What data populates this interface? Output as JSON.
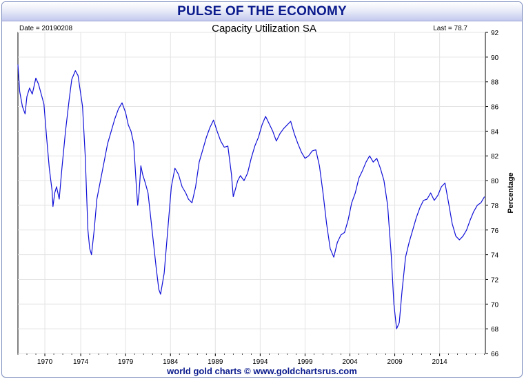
{
  "banner": {
    "title": "PULSE OF THE ECONOMY"
  },
  "footer": {
    "credit": "world gold charts © www.goldchartsrus.com"
  },
  "chart_data": {
    "type": "line",
    "title": "Capacity Utilization SA",
    "date_label": "Date = 20190208",
    "last_label": "Last = 78.7",
    "ylabel": "Percentage",
    "xlabel": "",
    "xlim": [
      1967.0,
      2019.1
    ],
    "ylim": [
      66,
      92
    ],
    "x_ticks": [
      1970,
      1974,
      1979,
      1984,
      1989,
      1994,
      1999,
      2004,
      2009,
      2014
    ],
    "y_ticks": [
      66,
      68,
      70,
      72,
      74,
      76,
      78,
      80,
      82,
      84,
      86,
      88,
      90,
      92
    ],
    "y_axis_side": "right",
    "grid": true,
    "legend": "none",
    "line_color": "#1010d8",
    "series": [
      {
        "x": [
          1967.0,
          1967.2,
          1967.5,
          1967.8,
          1968.0,
          1968.3,
          1968.6,
          1969.0,
          1969.3,
          1969.6,
          1969.9,
          1970.2,
          1970.5,
          1970.8,
          1970.9,
          1971.1,
          1971.3,
          1971.6,
          1971.9,
          1972.3,
          1972.7,
          1973.0,
          1973.4,
          1973.7,
          1973.9,
          1974.2,
          1974.5,
          1974.8,
          1975.0,
          1975.2,
          1975.5,
          1975.8,
          1976.2,
          1976.6,
          1977.0,
          1977.4,
          1977.8,
          1978.2,
          1978.6,
          1979.0,
          1979.3,
          1979.6,
          1979.9,
          1980.2,
          1980.35,
          1980.5,
          1980.7,
          1980.9,
          1981.2,
          1981.5,
          1981.8,
          1982.1,
          1982.4,
          1982.7,
          1982.9,
          1983.3,
          1983.7,
          1984.1,
          1984.5,
          1984.9,
          1985.3,
          1985.7,
          1986.0,
          1986.4,
          1986.8,
          1987.2,
          1987.6,
          1988.0,
          1988.4,
          1988.8,
          1989.2,
          1989.6,
          1990.0,
          1990.4,
          1990.8,
          1991.0,
          1991.2,
          1991.5,
          1991.8,
          1992.2,
          1992.6,
          1993.0,
          1993.4,
          1993.8,
          1994.2,
          1994.6,
          1995.0,
          1995.4,
          1995.8,
          1996.2,
          1996.6,
          1997.0,
          1997.4,
          1997.8,
          1998.2,
          1998.6,
          1999.0,
          1999.4,
          1999.8,
          2000.2,
          2000.6,
          2001.0,
          2001.4,
          2001.8,
          2002.2,
          2002.6,
          2003.0,
          2003.4,
          2003.8,
          2004.2,
          2004.6,
          2005.0,
          2005.4,
          2005.8,
          2006.2,
          2006.6,
          2007.0,
          2007.4,
          2007.8,
          2008.2,
          2008.6,
          2008.9,
          2009.2,
          2009.5,
          2009.8,
          2010.2,
          2010.6,
          2011.0,
          2011.4,
          2011.8,
          2012.2,
          2012.6,
          2013.0,
          2013.4,
          2013.8,
          2014.2,
          2014.6,
          2015.0,
          2015.4,
          2015.8,
          2016.2,
          2016.6,
          2017.0,
          2017.4,
          2017.8,
          2018.2,
          2018.6,
          2019.0
        ],
        "y": [
          89.4,
          87.2,
          86.0,
          85.4,
          86.8,
          87.5,
          87.0,
          88.3,
          87.8,
          87.0,
          86.2,
          83.5,
          81.0,
          79.2,
          77.9,
          79.0,
          79.5,
          78.5,
          81.0,
          84.0,
          86.5,
          88.2,
          88.9,
          88.5,
          87.5,
          86.0,
          82.0,
          76.0,
          74.5,
          74.0,
          76.0,
          78.5,
          80.0,
          81.5,
          83.0,
          84.0,
          85.0,
          85.8,
          86.3,
          85.5,
          84.5,
          84.0,
          83.0,
          79.5,
          78.0,
          79.0,
          81.2,
          80.5,
          79.8,
          79.0,
          77.0,
          75.0,
          73.0,
          71.2,
          70.8,
          72.5,
          76.0,
          79.5,
          81.0,
          80.5,
          79.5,
          79.0,
          78.5,
          78.2,
          79.5,
          81.5,
          82.5,
          83.5,
          84.3,
          84.9,
          84.0,
          83.2,
          82.7,
          82.8,
          80.5,
          78.7,
          79.2,
          80.0,
          80.4,
          80.0,
          80.6,
          81.8,
          82.8,
          83.5,
          84.5,
          85.2,
          84.6,
          84.0,
          83.2,
          83.8,
          84.2,
          84.5,
          84.8,
          83.8,
          83.0,
          82.3,
          81.8,
          82.0,
          82.4,
          82.5,
          81.2,
          79.0,
          76.5,
          74.5,
          73.8,
          75.0,
          75.6,
          75.8,
          76.8,
          78.2,
          79.0,
          80.2,
          80.8,
          81.5,
          82.0,
          81.5,
          81.8,
          81.0,
          80.0,
          78.0,
          74.0,
          70.0,
          68.0,
          68.5,
          71.0,
          73.8,
          75.0,
          76.0,
          77.0,
          77.8,
          78.4,
          78.5,
          79.0,
          78.4,
          78.8,
          79.5,
          79.8,
          78.2,
          76.5,
          75.5,
          75.2,
          75.5,
          76.0,
          76.8,
          77.5,
          78.0,
          78.2,
          78.7
        ]
      }
    ]
  }
}
